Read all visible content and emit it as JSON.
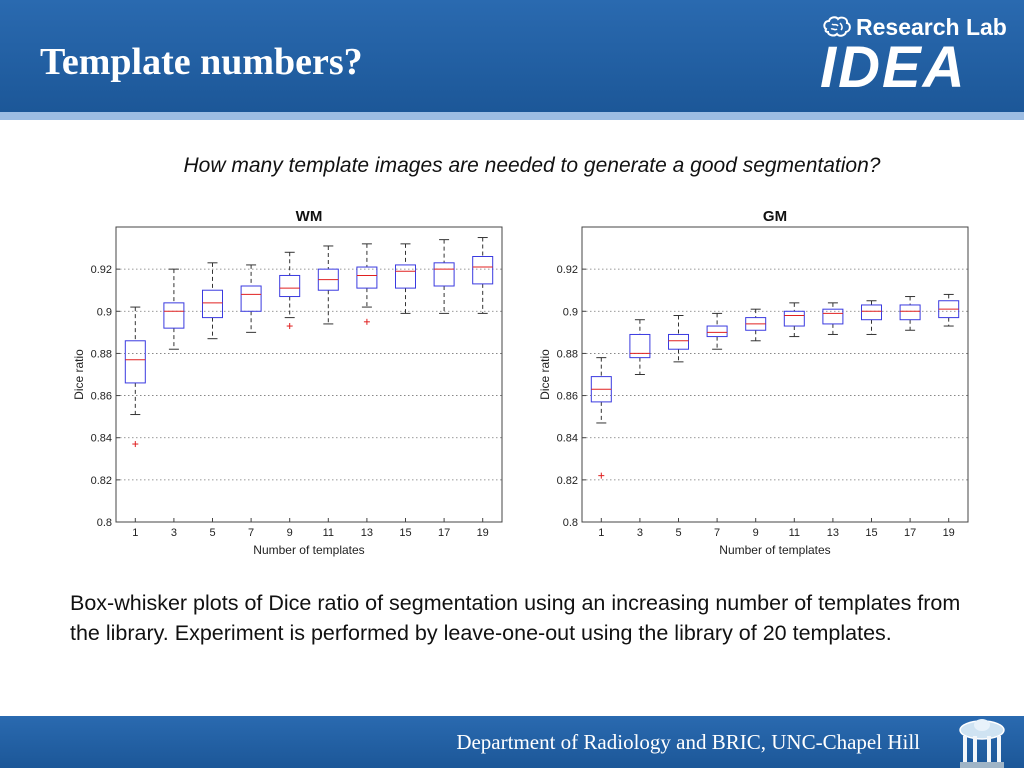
{
  "slide": {
    "title": "Template numbers?",
    "logo_top": "Research Lab",
    "logo_main": "IDEA",
    "subtitle": "How many template images are needed to generate a good segmentation?",
    "caption": "Box-whisker plots of Dice ratio of segmentation using an increasing number of templates from the library. Experiment is performed by leave-one-out using the library of 20 templates.",
    "footer": "Department of Radiology and BRIC, UNC-Chapel Hill",
    "colors": {
      "header": "#1f5b9e",
      "box": "#3a3ae0",
      "median": "#e02020",
      "outlier": "#e02020",
      "whisker": "#333333"
    }
  },
  "chart_data": [
    {
      "type": "box",
      "title": "WM",
      "xlabel": "Number of templates",
      "ylabel": "Dice ratio",
      "ylim": [
        0.8,
        0.94
      ],
      "yticks": [
        0.8,
        0.82,
        0.84,
        0.86,
        0.88,
        0.9,
        0.92
      ],
      "grid": true,
      "categories": [
        "1",
        "3",
        "5",
        "7",
        "9",
        "11",
        "13",
        "15",
        "17",
        "19"
      ],
      "boxes": [
        {
          "min": 0.851,
          "q1": 0.866,
          "median": 0.877,
          "q3": 0.886,
          "max": 0.902,
          "outliers": [
            0.837
          ]
        },
        {
          "min": 0.882,
          "q1": 0.892,
          "median": 0.9,
          "q3": 0.904,
          "max": 0.92,
          "outliers": []
        },
        {
          "min": 0.887,
          "q1": 0.897,
          "median": 0.904,
          "q3": 0.91,
          "max": 0.923,
          "outliers": []
        },
        {
          "min": 0.89,
          "q1": 0.9,
          "median": 0.908,
          "q3": 0.912,
          "max": 0.922,
          "outliers": []
        },
        {
          "min": 0.897,
          "q1": 0.907,
          "median": 0.911,
          "q3": 0.917,
          "max": 0.928,
          "outliers": [
            0.893
          ]
        },
        {
          "min": 0.894,
          "q1": 0.91,
          "median": 0.915,
          "q3": 0.92,
          "max": 0.931,
          "outliers": []
        },
        {
          "min": 0.902,
          "q1": 0.911,
          "median": 0.917,
          "q3": 0.921,
          "max": 0.932,
          "outliers": [
            0.895
          ]
        },
        {
          "min": 0.899,
          "q1": 0.911,
          "median": 0.919,
          "q3": 0.922,
          "max": 0.932,
          "outliers": []
        },
        {
          "min": 0.899,
          "q1": 0.912,
          "median": 0.92,
          "q3": 0.923,
          "max": 0.934,
          "outliers": []
        },
        {
          "min": 0.899,
          "q1": 0.913,
          "median": 0.921,
          "q3": 0.926,
          "max": 0.935,
          "outliers": []
        }
      ]
    },
    {
      "type": "box",
      "title": "GM",
      "xlabel": "Number of templates",
      "ylabel": "Dice ratio",
      "ylim": [
        0.8,
        0.94
      ],
      "yticks": [
        0.8,
        0.82,
        0.84,
        0.86,
        0.88,
        0.9,
        0.92
      ],
      "grid": true,
      "categories": [
        "1",
        "3",
        "5",
        "7",
        "9",
        "11",
        "13",
        "15",
        "17",
        "19"
      ],
      "boxes": [
        {
          "min": 0.847,
          "q1": 0.857,
          "median": 0.863,
          "q3": 0.869,
          "max": 0.878,
          "outliers": [
            0.822
          ]
        },
        {
          "min": 0.87,
          "q1": 0.878,
          "median": 0.88,
          "q3": 0.889,
          "max": 0.896,
          "outliers": []
        },
        {
          "min": 0.876,
          "q1": 0.882,
          "median": 0.886,
          "q3": 0.889,
          "max": 0.898,
          "outliers": []
        },
        {
          "min": 0.882,
          "q1": 0.888,
          "median": 0.89,
          "q3": 0.893,
          "max": 0.899,
          "outliers": []
        },
        {
          "min": 0.886,
          "q1": 0.891,
          "median": 0.894,
          "q3": 0.897,
          "max": 0.901,
          "outliers": []
        },
        {
          "min": 0.888,
          "q1": 0.893,
          "median": 0.898,
          "q3": 0.9,
          "max": 0.904,
          "outliers": []
        },
        {
          "min": 0.889,
          "q1": 0.894,
          "median": 0.899,
          "q3": 0.901,
          "max": 0.904,
          "outliers": []
        },
        {
          "min": 0.889,
          "q1": 0.896,
          "median": 0.9,
          "q3": 0.903,
          "max": 0.905,
          "outliers": []
        },
        {
          "min": 0.891,
          "q1": 0.896,
          "median": 0.9,
          "q3": 0.903,
          "max": 0.907,
          "outliers": []
        },
        {
          "min": 0.893,
          "q1": 0.897,
          "median": 0.901,
          "q3": 0.905,
          "max": 0.908,
          "outliers": []
        }
      ]
    }
  ]
}
